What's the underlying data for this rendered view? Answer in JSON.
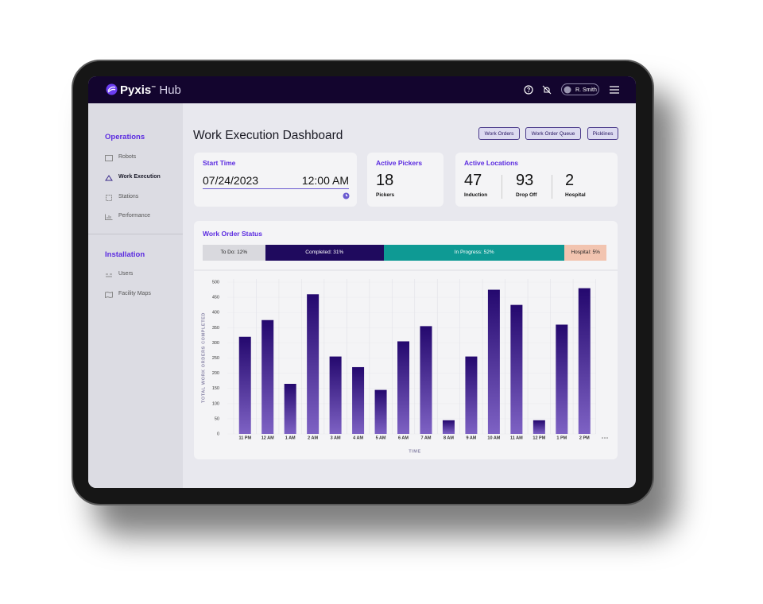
{
  "header": {
    "brand": "Pyxis",
    "trademark": "™",
    "brand_sub": "Hub",
    "user": "R. Smith"
  },
  "sidebar": {
    "sections": [
      {
        "title": "Operations",
        "items": [
          "Robots",
          "Work Execution",
          "Stations",
          "Performance"
        ]
      },
      {
        "title": "Installation",
        "items": [
          "Users",
          "Facility Maps"
        ]
      }
    ]
  },
  "page": {
    "title": "Work Execution Dashboard",
    "buttons": [
      "Work Orders",
      "Work Order Queue",
      "Picklines"
    ]
  },
  "start_time": {
    "title": "Start Time",
    "date": "07/24/2023",
    "time": "12:00 AM"
  },
  "active_pickers": {
    "title": "Active Pickers",
    "value": "18",
    "label": "Pickers"
  },
  "active_locations": {
    "title": "Active Locations",
    "items": [
      {
        "value": "47",
        "label": "Induction"
      },
      {
        "value": "93",
        "label": "Drop Off"
      },
      {
        "value": "2",
        "label": "Hospital"
      }
    ]
  },
  "work_order_status": {
    "title": "Work Order Status",
    "segments": [
      {
        "value": 12,
        "label": "To Do: 12%",
        "color": "#d9d9de",
        "text_color": "#222"
      },
      {
        "value": 31,
        "label": "Completed: 31%",
        "color": "#1f0a5e",
        "text_color": "#fff"
      },
      {
        "value": 52,
        "label": "In Progress: 52%",
        "color": "#0e9a94",
        "text_color": "#fff"
      },
      {
        "value": 5,
        "label": "Hospital: 5%",
        "color": "#f2c4b0",
        "text_color": "#222"
      }
    ]
  },
  "chart_data": {
    "type": "bar",
    "categories": [
      "11 PM",
      "12 AM",
      "1 AM",
      "2 AM",
      "3 AM",
      "4 AM",
      "5 AM",
      "6 AM",
      "7 AM",
      "8 AM",
      "9 AM",
      "10 AM",
      "11 AM",
      "12 PM",
      "1 PM",
      "2 PM"
    ],
    "values": [
      320,
      375,
      165,
      460,
      255,
      220,
      145,
      305,
      355,
      45,
      255,
      475,
      425,
      45,
      360,
      480
    ],
    "gradient": [
      "#24086e",
      "#7e62c4"
    ],
    "ylim": [
      0,
      500
    ],
    "yticks": [
      0,
      50,
      100,
      150,
      200,
      250,
      300,
      350,
      400,
      450,
      500
    ],
    "ylabel": "TOTAL WORK ORDERS COMPLETED",
    "xlabel": "TIME",
    "grid": true
  }
}
